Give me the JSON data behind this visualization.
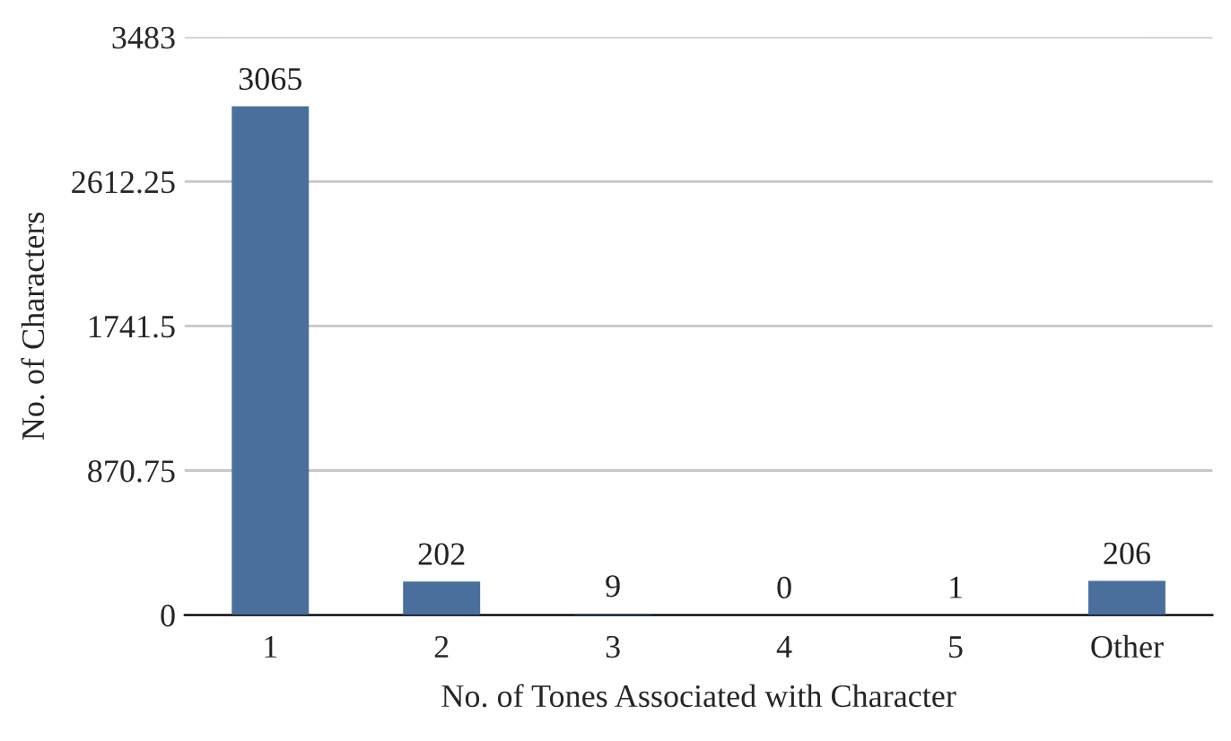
{
  "chart_data": {
    "type": "bar",
    "xlabel": "No. of Tones Associated with Character",
    "ylabel": "No. of Characters",
    "categories": [
      "1",
      "2",
      "3",
      "4",
      "5",
      "Other"
    ],
    "values": [
      3065,
      202,
      9,
      0,
      1,
      206
    ],
    "color": "#4a6f9c",
    "ylim": [
      0,
      3483
    ],
    "yticks": [
      0,
      870.75,
      1741.5,
      2612.25,
      3483
    ],
    "grid": "y",
    "data_labels": true
  }
}
